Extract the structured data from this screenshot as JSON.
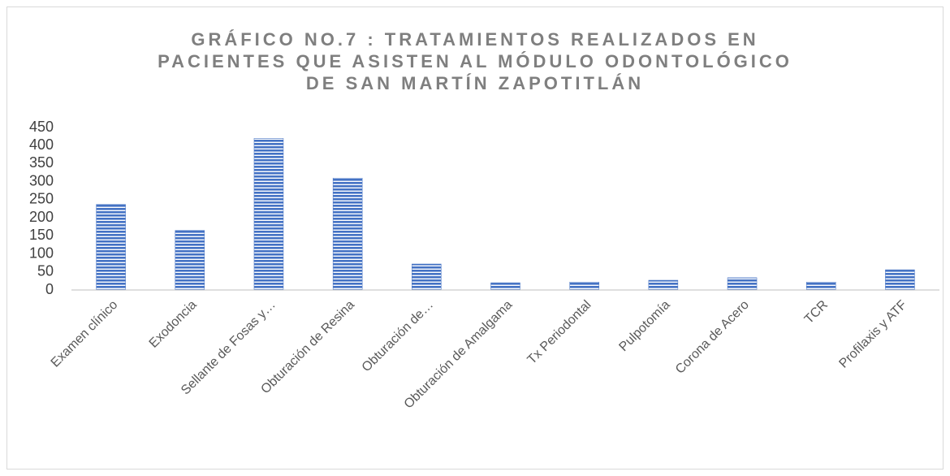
{
  "chart_data": {
    "type": "bar",
    "title": [
      "GRÁFICO NO.7 : TRATAMIENTOS REALIZADOS EN",
      "PACIENTES QUE ASISTEN AL MÓDULO ODONTOLÓGICO",
      "DE SAN MARTÍN ZAPOTITLÁN"
    ],
    "categories": [
      "Examen clínico",
      "Exodoncia",
      "Sellante de Fosas y…",
      "Obturación de Resina",
      "Obturación de…",
      "Obturación de Amalgama",
      "Tx Periodontal",
      "Pulpotomía",
      "Corona de Acero",
      "TCR",
      "Profilaxis y ATF"
    ],
    "values": [
      237,
      165,
      420,
      310,
      72,
      20,
      22,
      27,
      34,
      22,
      56
    ],
    "color": "#4472c4",
    "ylim": [
      0,
      450
    ],
    "yticks": [
      0,
      50,
      100,
      150,
      200,
      250,
      300,
      350,
      400,
      450
    ],
    "grid": false
  }
}
